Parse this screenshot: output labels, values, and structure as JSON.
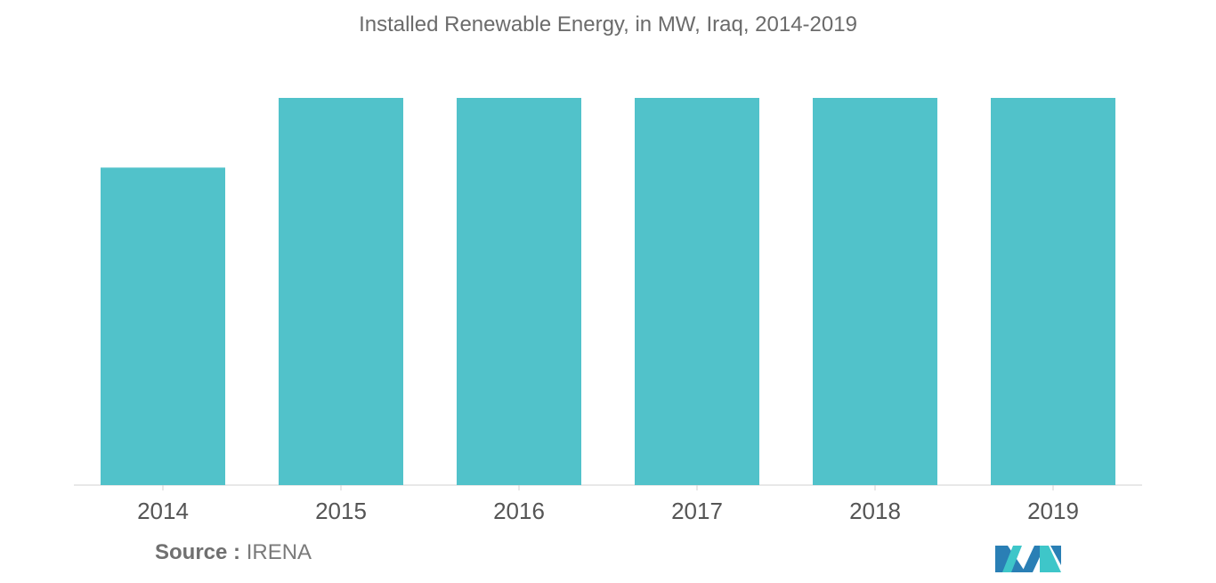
{
  "chart_data": {
    "type": "bar",
    "title": "Installed Renewable Energy, in MW, Iraq, 2014-2019",
    "categories": [
      "2014",
      "2015",
      "2016",
      "2017",
      "2018",
      "2019"
    ],
    "values": [
      82,
      100,
      100,
      100,
      100,
      100
    ],
    "xlabel": "",
    "ylabel": "",
    "ylim": [
      0,
      100
    ],
    "grid": false,
    "bar_color": "#51c2ca",
    "axis_color": "#d0d0d0"
  },
  "source": {
    "label": "Source :",
    "value": "IRENA"
  },
  "colors": {
    "logo_teal": "#3ec6c9",
    "logo_blue": "#2a7fb5"
  }
}
